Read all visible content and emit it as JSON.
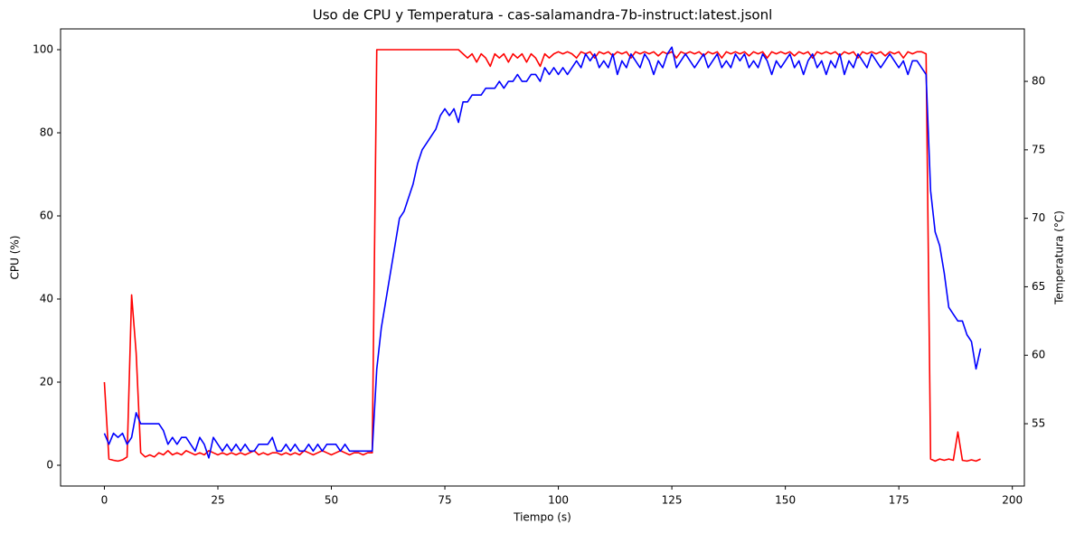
{
  "chart_data": {
    "type": "line",
    "title": "Uso de CPU y Temperatura - cas-salamandra-7b-instruct:latest.jsonl",
    "x_label": "Tiempo (s)",
    "y_label": "CPU (%)",
    "y2_label": "Temperatura (°C)",
    "y_color": "#ff0000",
    "y2_color": "#0000ff",
    "grid": false,
    "xlim": [
      -9.65,
      202.65
    ],
    "xticks": [
      0,
      25,
      50,
      75,
      100,
      125,
      150,
      175,
      200
    ],
    "ylim": [
      -5,
      105
    ],
    "yticks": [
      0,
      20,
      40,
      60,
      80,
      100
    ],
    "y2lim": [
      50.45,
      83.83
    ],
    "y2ticks": [
      55,
      60,
      65,
      70,
      75,
      80
    ],
    "x": [
      0,
      1,
      2,
      3,
      4,
      5,
      6,
      7,
      8,
      9,
      10,
      11,
      12,
      13,
      14,
      15,
      16,
      17,
      18,
      19,
      20,
      21,
      22,
      23,
      24,
      25,
      26,
      27,
      28,
      29,
      30,
      31,
      32,
      33,
      34,
      35,
      36,
      37,
      38,
      39,
      40,
      41,
      42,
      43,
      44,
      45,
      46,
      47,
      48,
      49,
      50,
      51,
      52,
      53,
      54,
      55,
      56,
      57,
      58,
      59,
      60,
      61,
      62,
      63,
      64,
      65,
      66,
      67,
      68,
      69,
      70,
      71,
      72,
      73,
      74,
      75,
      76,
      77,
      78,
      79,
      80,
      81,
      82,
      83,
      84,
      85,
      86,
      87,
      88,
      89,
      90,
      91,
      92,
      93,
      94,
      95,
      96,
      97,
      98,
      99,
      100,
      101,
      102,
      103,
      104,
      105,
      106,
      107,
      108,
      109,
      110,
      111,
      112,
      113,
      114,
      115,
      116,
      117,
      118,
      119,
      120,
      121,
      122,
      123,
      124,
      125,
      126,
      127,
      128,
      129,
      130,
      131,
      132,
      133,
      134,
      135,
      136,
      137,
      138,
      139,
      140,
      141,
      142,
      143,
      144,
      145,
      146,
      147,
      148,
      149,
      150,
      151,
      152,
      153,
      154,
      155,
      156,
      157,
      158,
      159,
      160,
      161,
      162,
      163,
      164,
      165,
      166,
      167,
      168,
      169,
      170,
      171,
      172,
      173,
      174,
      175,
      176,
      177,
      178,
      179,
      180,
      181,
      182,
      183,
      184,
      185,
      186,
      187,
      188,
      189,
      190,
      191,
      192,
      193
    ],
    "series": [
      {
        "name": "CPU (%)",
        "color": "#ff0000",
        "axis": "y",
        "values": [
          20,
          1.5,
          1.2,
          1,
          1.3,
          2,
          41,
          27,
          3,
          2,
          2.5,
          2,
          3,
          2.5,
          3.5,
          2.5,
          3,
          2.5,
          3.5,
          3,
          2.5,
          3,
          2.5,
          3.5,
          3,
          2.5,
          3,
          2.5,
          3,
          2.5,
          3,
          2.5,
          3,
          3.5,
          2.5,
          3,
          2.5,
          3,
          3,
          2.5,
          3,
          2.5,
          3,
          2.5,
          3.5,
          3,
          2.5,
          3,
          3.5,
          3,
          2.5,
          3,
          3.5,
          3,
          2.5,
          3,
          3,
          2.5,
          3,
          3,
          100,
          100,
          100,
          100,
          100,
          100,
          100,
          100,
          100,
          100,
          100,
          100,
          100,
          100,
          100,
          100,
          100,
          100,
          100,
          99,
          98,
          99,
          97,
          99,
          98,
          96,
          99,
          98,
          99,
          97,
          99,
          98,
          99,
          97,
          99,
          98,
          96,
          99,
          98,
          99,
          99.5,
          99,
          99.5,
          99,
          98,
          99.5,
          99,
          99.5,
          98,
          99.5,
          99,
          99.5,
          98.5,
          99.5,
          99,
          99.5,
          98,
          99.5,
          99,
          99.5,
          99,
          99.5,
          98.5,
          99.5,
          99,
          99.5,
          98,
          99.5,
          99,
          99.5,
          99,
          99.5,
          98.5,
          99.5,
          99,
          99.5,
          98,
          99.5,
          99,
          99.5,
          99,
          99.5,
          98.5,
          99.5,
          99,
          99.5,
          98,
          99.5,
          99,
          99.5,
          99,
          99.5,
          98.5,
          99.5,
          99,
          99.5,
          98,
          99.5,
          99,
          99.5,
          99,
          99.5,
          98.5,
          99.5,
          99,
          99.5,
          98,
          99.5,
          99,
          99.5,
          99,
          99.5,
          98.5,
          99.5,
          99,
          99.5,
          98,
          99.5,
          99,
          99.5,
          99.5,
          99,
          1.5,
          1,
          1.5,
          1.2,
          1.5,
          1.2,
          8,
          1.2,
          1,
          1.3,
          1,
          1.5
        ]
      },
      {
        "name": "Temperatura (°C)",
        "color": "#0000ff",
        "axis": "y2",
        "values": [
          54.3,
          53.5,
          54.3,
          54,
          54.3,
          53.5,
          54,
          55.8,
          55,
          55,
          55,
          55,
          55,
          54.5,
          53.5,
          54,
          53.5,
          54,
          54,
          53.5,
          53,
          54,
          53.5,
          52.5,
          54,
          53.5,
          53,
          53.5,
          53,
          53.5,
          53,
          53.5,
          53,
          53,
          53.5,
          53.5,
          53.5,
          54,
          53,
          53,
          53.5,
          53,
          53.5,
          53,
          53,
          53.5,
          53,
          53.5,
          53,
          53.5,
          53.5,
          53.5,
          53,
          53.5,
          53,
          53,
          53,
          53,
          53,
          53,
          59,
          62,
          64,
          66,
          68,
          70,
          70.5,
          71.5,
          72.5,
          74,
          75,
          75.5,
          76,
          76.5,
          77.5,
          78,
          77.5,
          78,
          77,
          78.5,
          78.5,
          79,
          79,
          79,
          79.5,
          79.5,
          79.5,
          80,
          79.5,
          80,
          80,
          80.5,
          80,
          80,
          80.5,
          80.5,
          80,
          81,
          80.5,
          81,
          80.5,
          81,
          80.5,
          81,
          81.5,
          81,
          82,
          81.5,
          82,
          81,
          81.5,
          81,
          82,
          80.5,
          81.5,
          81,
          82,
          81.5,
          81,
          82,
          81.5,
          80.5,
          81.5,
          81,
          82,
          82.5,
          81,
          81.5,
          82,
          81.5,
          81,
          81.5,
          82,
          81,
          81.5,
          82,
          81,
          81.5,
          81,
          82,
          81.5,
          82,
          81,
          81.5,
          81,
          82,
          81.5,
          80.5,
          81.5,
          81,
          81.5,
          82,
          81,
          81.5,
          80.5,
          81.5,
          82,
          81,
          81.5,
          80.5,
          81.5,
          81,
          82,
          80.5,
          81.5,
          81,
          82,
          81.5,
          81,
          82,
          81.5,
          81,
          81.5,
          82,
          81.5,
          81,
          81.5,
          80.5,
          81.5,
          81.5,
          81,
          80.5,
          72,
          69,
          68,
          66,
          63.5,
          63,
          62.5,
          62.5,
          61.5,
          61,
          59,
          60.5
        ]
      }
    ]
  }
}
